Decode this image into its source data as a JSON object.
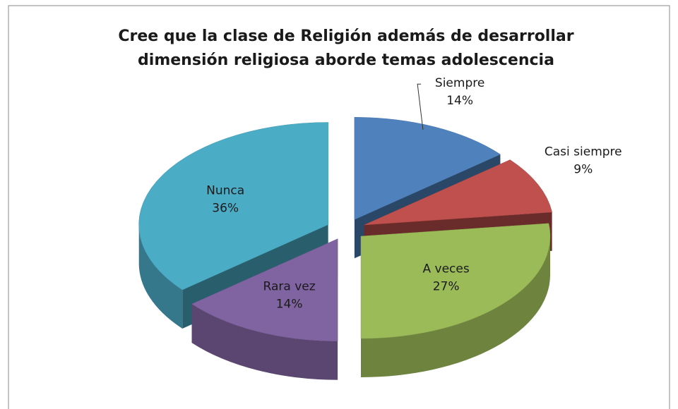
{
  "chart_data": {
    "type": "pie3d",
    "title": [
      "Cree que la clase de Religión además de desarrollar",
      "dimensión religiosa aborde temas adolescencia"
    ],
    "categories": [
      "Siempre",
      "Casi siempre",
      "A veces",
      "Rara vez",
      "Nunca"
    ],
    "values": [
      14,
      9,
      27,
      14,
      36
    ],
    "value_labels": [
      "14%",
      "9%",
      "27%",
      "14%",
      "36%"
    ],
    "colors": [
      "#4f81bd",
      "#c0504d",
      "#9bbb59",
      "#8064a2",
      "#4bacc6"
    ]
  }
}
